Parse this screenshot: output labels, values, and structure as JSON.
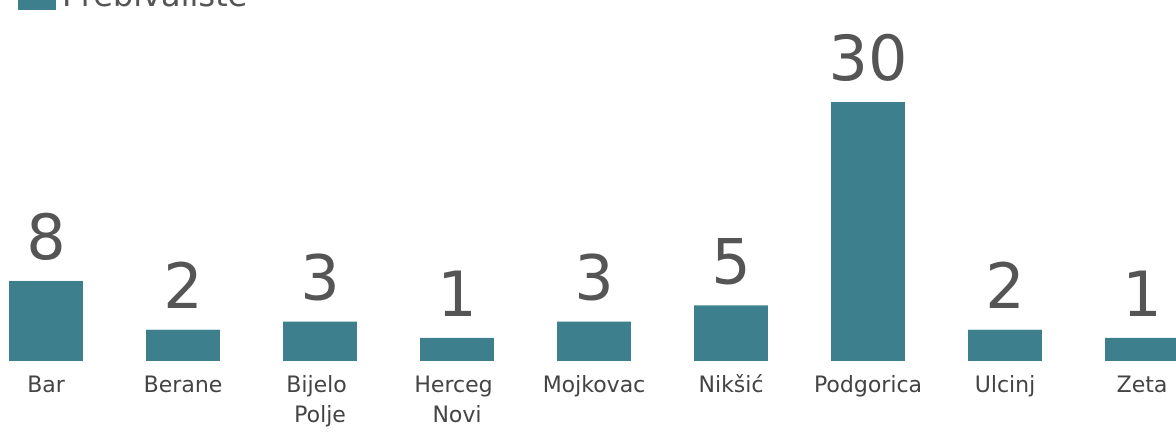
{
  "chart_data": {
    "type": "bar",
    "categories": [
      "Bar",
      "Berane",
      "Bijelo Polje",
      "Herceg Novi",
      "Mojkovac",
      "Nikšić",
      "Podgorica",
      "Ulcinj",
      "Zeta"
    ],
    "series": [
      {
        "name": "Prebivalište",
        "color": "#3d7f8c",
        "values": [
          8,
          2,
          3,
          1,
          3,
          5,
          30,
          2,
          1
        ]
      }
    ],
    "ylim": [
      -1.84,
      30
    ]
  }
}
